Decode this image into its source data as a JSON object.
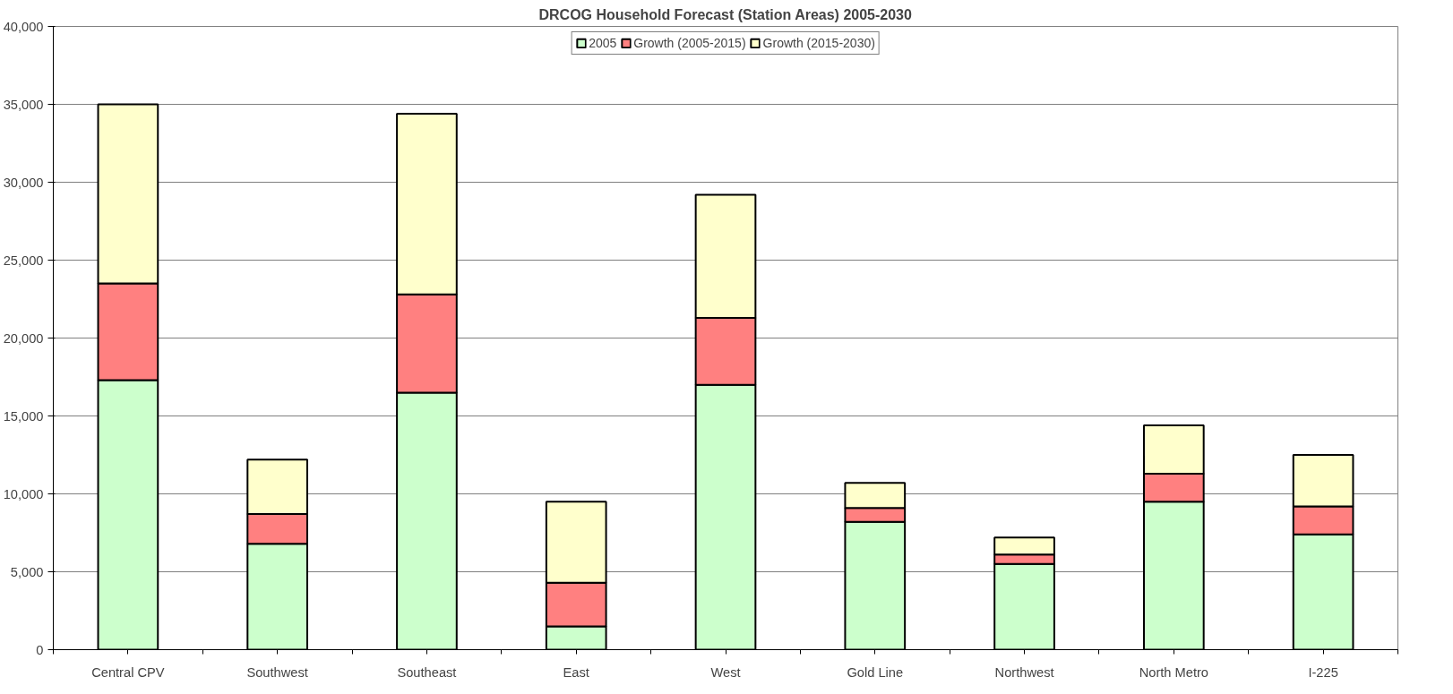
{
  "chart_data": {
    "type": "bar",
    "title": "DRCOG Household Forecast (Station Areas) 2005-2030",
    "categories": [
      "Central CPV",
      "Southwest",
      "Southeast",
      "East",
      "West",
      "Gold Line",
      "Northwest",
      "North Metro",
      "I-225"
    ],
    "stacked": true,
    "series": [
      {
        "name": "2005",
        "color": "#ccffcc",
        "values": [
          17300,
          6800,
          16500,
          1500,
          17000,
          8200,
          5500,
          9500,
          7400
        ]
      },
      {
        "name": "Growth (2005-2015)",
        "color": "#ff8080",
        "values": [
          6200,
          1900,
          6300,
          2800,
          4300,
          900,
          600,
          1800,
          1800
        ]
      },
      {
        "name": "Growth (2015-2030)",
        "color": "#ffffcc",
        "values": [
          11500,
          3500,
          11600,
          5200,
          7900,
          1600,
          1100,
          3100,
          3300
        ]
      }
    ],
    "ylim": [
      0,
      40000
    ],
    "yticks": [
      {
        "value": 0,
        "label": "0"
      },
      {
        "value": 5000,
        "label": "5,000"
      },
      {
        "value": 10000,
        "label": "10,000"
      },
      {
        "value": 15000,
        "label": "15,000"
      },
      {
        "value": 20000,
        "label": "20,000"
      },
      {
        "value": 25000,
        "label": "25,000"
      },
      {
        "value": 30000,
        "label": "30,000"
      },
      {
        "value": 35000,
        "label": "35,000"
      },
      {
        "value": 40000,
        "label": "40,000"
      }
    ],
    "grid": "y",
    "legend": "top"
  }
}
